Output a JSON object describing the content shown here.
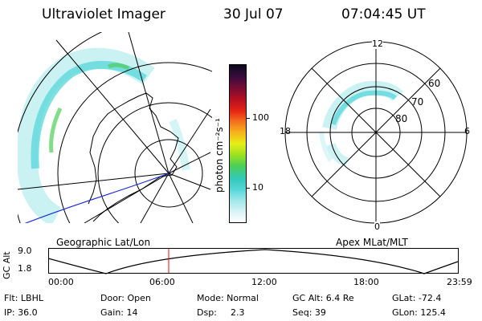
{
  "header": {
    "title": "Ultraviolet Imager",
    "date": "30 Jul 07",
    "time": "07:04:45 UT"
  },
  "geo_panel": {
    "label": "Geographic Lat/Lon"
  },
  "apex_panel": {
    "label": "Apex MLat/MLT",
    "mlt_labels": [
      "12",
      "18",
      "6",
      "0"
    ],
    "mlat_labels": [
      "60",
      "70",
      "80"
    ]
  },
  "colorbar": {
    "unit_label": "photon cm⁻²s⁻¹",
    "ticks": [
      "100",
      "10"
    ],
    "scale": "log",
    "colors": [
      "#ffffff",
      "#d6f3f5",
      "#9fe8ea",
      "#55d6d8",
      "#33c9b8",
      "#4ccf55",
      "#9fe11f",
      "#e6ee18",
      "#f7b41b",
      "#f2701e",
      "#e52314",
      "#b51020",
      "#7a0c33",
      "#3d0b3f",
      "#0b0a1e"
    ]
  },
  "orbit_plot": {
    "y_label": "GC Alt",
    "y_ticks": [
      "9.0",
      "1.8"
    ],
    "x_ticks": [
      "00:00",
      "06:00",
      "12:00",
      "18:00",
      "23:59"
    ],
    "cursor_time": "07:04:45",
    "cursor_color": "#ff0000"
  },
  "info": {
    "filter": "Flt: LBHL",
    "door": "Door: Open",
    "mode": "Mode: Normal",
    "gc_alt": "GC Alt: 6.4 Re",
    "glat": "GLat: -72.4",
    "ip": "IP: 36.0",
    "gain": "Gain: 14",
    "dsp_label": "Dsp:",
    "dsp_value": "2.3",
    "seq": "Seq: 39",
    "glon": "GLon: 125.4"
  }
}
